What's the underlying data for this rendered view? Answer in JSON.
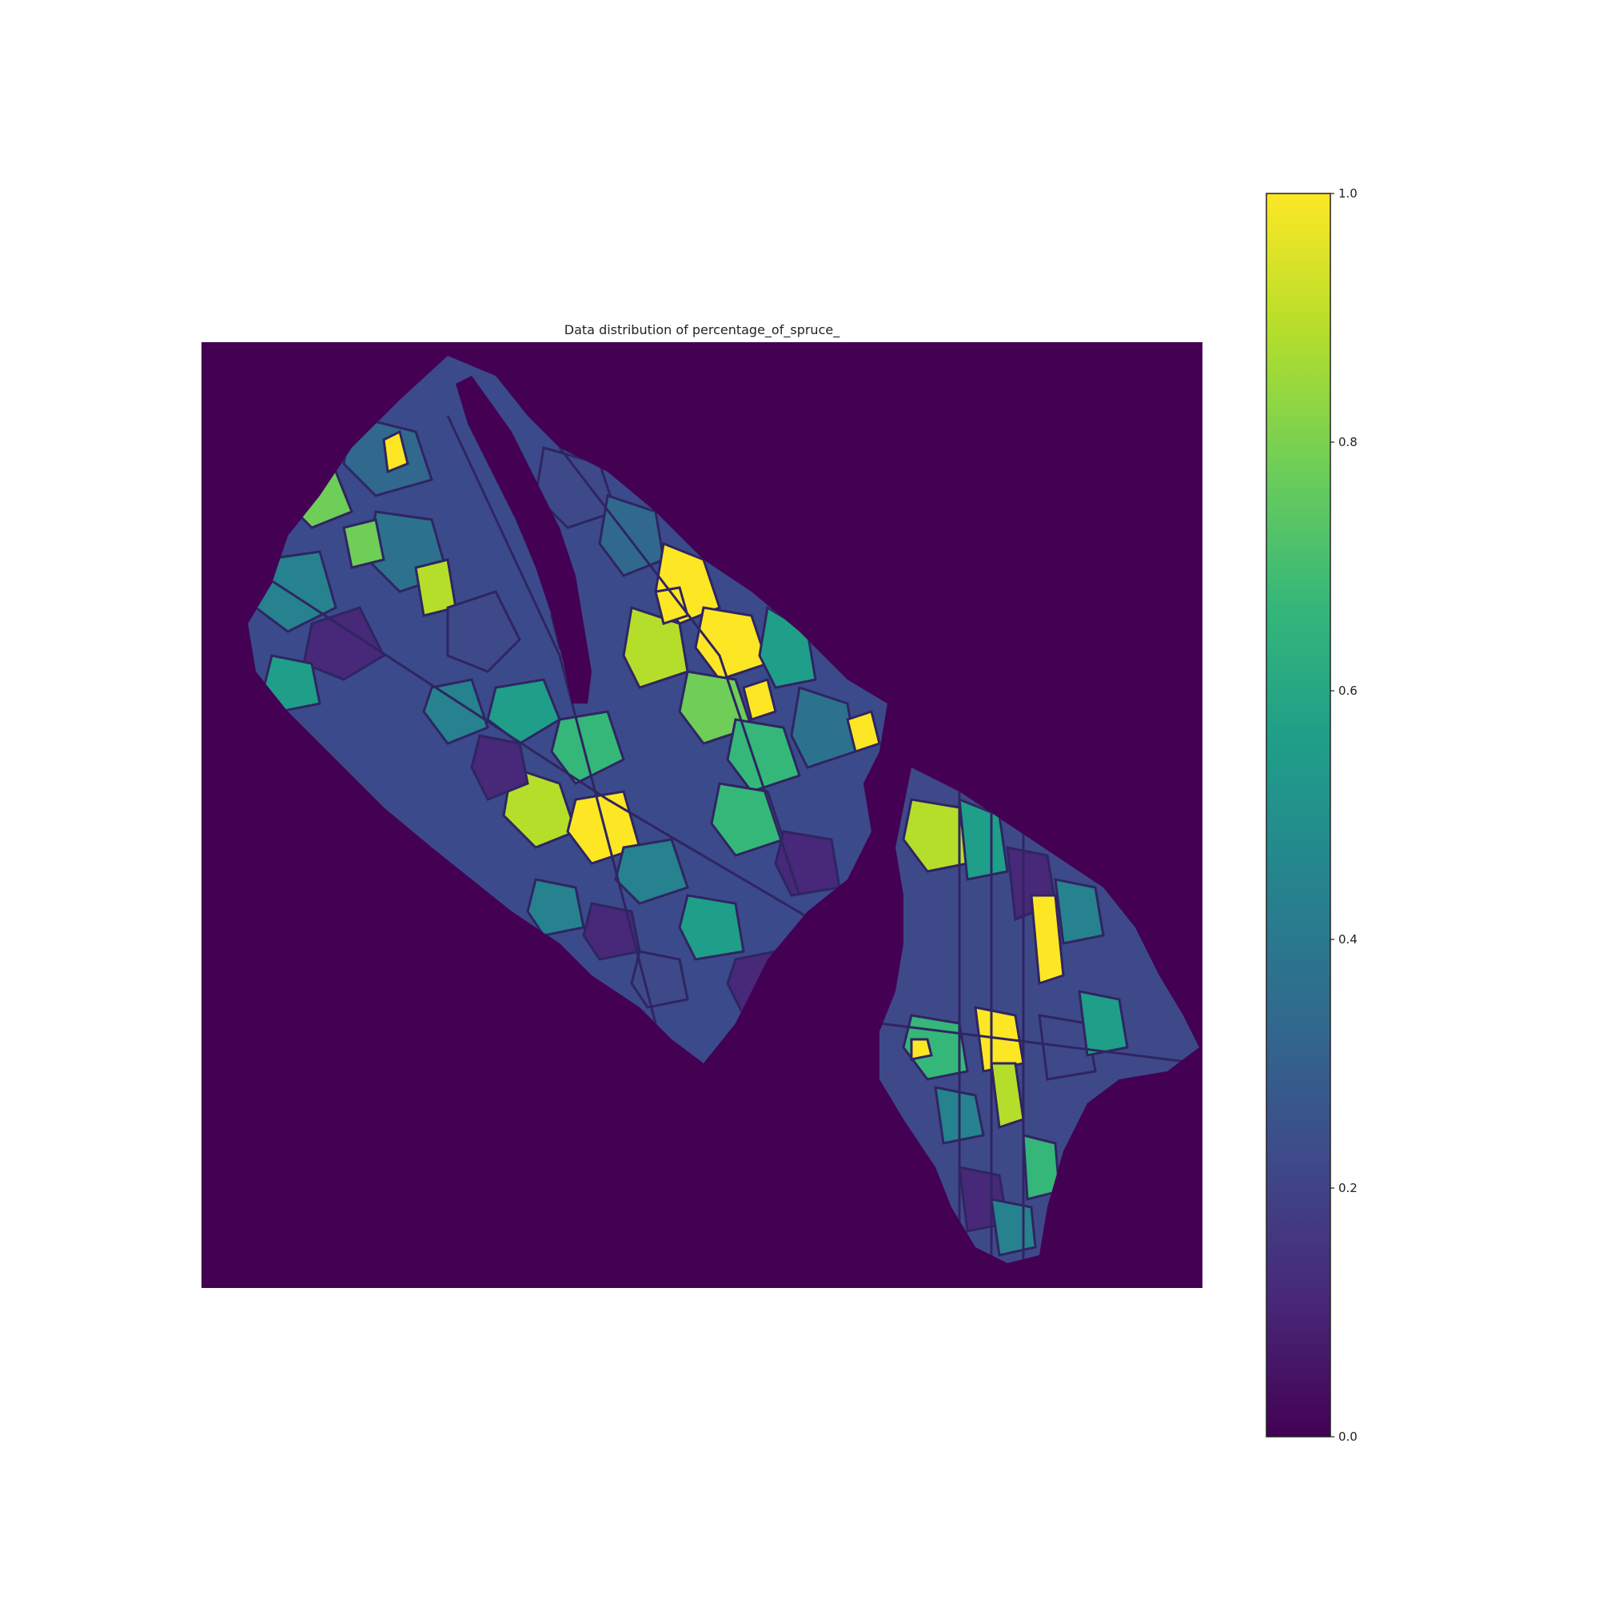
{
  "title": "Data distribution of percentage_of_spruce_",
  "colormap": {
    "name": "viridis",
    "stops": [
      "#440154",
      "#482878",
      "#3e4989",
      "#31688e",
      "#26828e",
      "#1f9e89",
      "#35b779",
      "#6ece58",
      "#b5de2b",
      "#fde725"
    ],
    "background": "#440154",
    "boundary": "#2f2562"
  },
  "colorbar": {
    "ticks": [
      {
        "value": 1.0,
        "label": "1.0"
      },
      {
        "value": 0.8,
        "label": "0.8"
      },
      {
        "value": 0.6,
        "label": "0.6"
      },
      {
        "value": 0.4,
        "label": "0.4"
      },
      {
        "value": 0.2,
        "label": "0.2"
      },
      {
        "value": 0.0,
        "label": "0.0"
      }
    ],
    "range": [
      0.0,
      1.0
    ]
  }
}
